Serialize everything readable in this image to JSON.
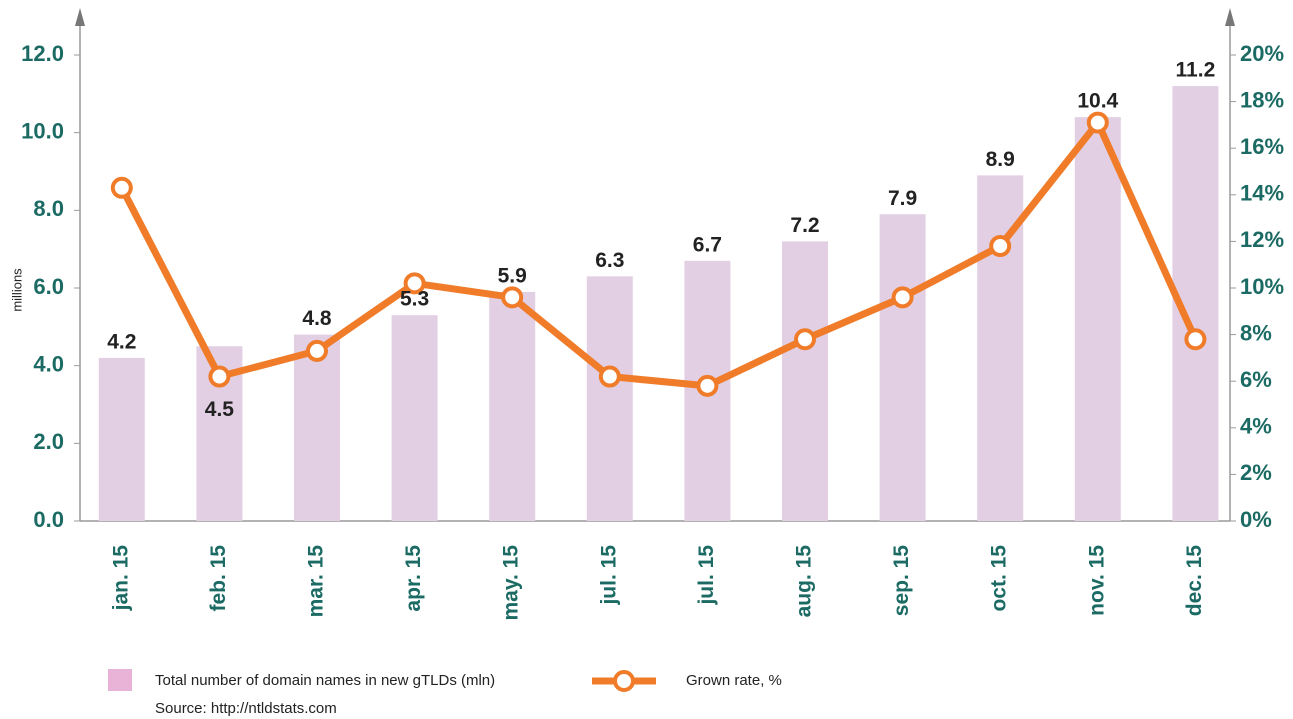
{
  "chart_data": {
    "type": "bar_line",
    "y_label": "millions",
    "categories": [
      "jan. 15",
      "feb. 15",
      "mar. 15",
      "apr. 15",
      "may. 15",
      "jul. 15",
      "jul. 15",
      "aug. 15",
      "sep. 15",
      "oct. 15",
      "nov. 15",
      "dec. 15"
    ],
    "series": [
      {
        "name": "Total number of domain names in new gTLDs (mln)",
        "color": "#e2cfe4",
        "type": "bar",
        "values": [
          4.2,
          4.5,
          4.8,
          5.3,
          5.9,
          6.3,
          6.7,
          7.2,
          7.9,
          8.9,
          10.4,
          11.2
        ]
      },
      {
        "name": "Grown rate, %",
        "color": "#f07c2a",
        "type": "line",
        "axis": "y2",
        "values": [
          14.3,
          6.2,
          7.3,
          10.2,
          9.6,
          6.2,
          5.8,
          7.8,
          9.6,
          11.8,
          17.1,
          7.8
        ]
      }
    ],
    "ylim": [
      0,
      12
    ],
    "yticks": [
      {
        "value": 0,
        "label": "0.0"
      },
      {
        "value": 2,
        "label": "2.0"
      },
      {
        "value": 4,
        "label": "4.0"
      },
      {
        "value": 6,
        "label": "6.0"
      },
      {
        "value": 8,
        "label": "8.0"
      },
      {
        "value": 10,
        "label": "10.0"
      },
      {
        "value": 12,
        "label": "12.0"
      }
    ],
    "y2lim": [
      0,
      20
    ],
    "y2ticks": [
      {
        "value": 0,
        "label": "0%"
      },
      {
        "value": 2,
        "label": "2%"
      },
      {
        "value": 4,
        "label": "4%"
      },
      {
        "value": 6,
        "label": "6%"
      },
      {
        "value": 8,
        "label": "8%"
      },
      {
        "value": 10,
        "label": "10%"
      },
      {
        "value": 12,
        "label": "12%"
      },
      {
        "value": 14,
        "label": "14%"
      },
      {
        "value": 16,
        "label": "16%"
      },
      {
        "value": 18,
        "label": "18%"
      },
      {
        "value": 20,
        "label": "20%"
      }
    ],
    "source": "Source: http://ntldstats.com"
  }
}
